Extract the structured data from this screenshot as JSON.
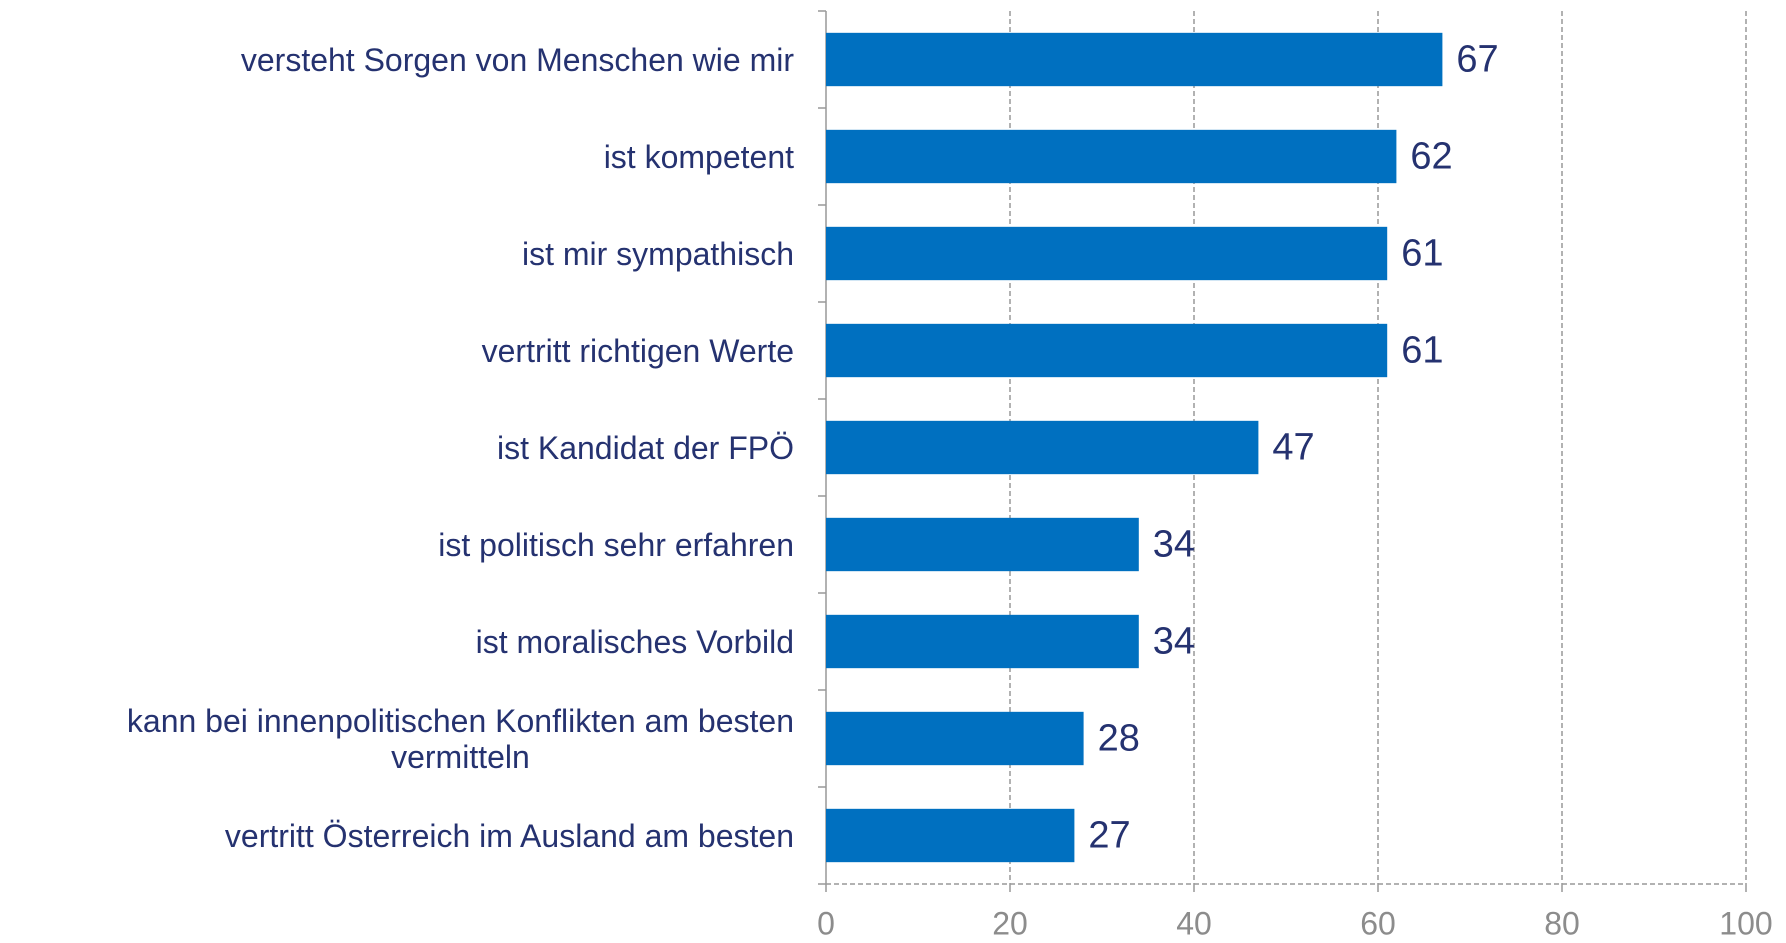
{
  "chart_data": {
    "type": "bar",
    "orientation": "horizontal",
    "categories": [
      "versteht Sorgen von Menschen wie mir",
      "ist kompetent",
      "ist mir sympathisch",
      "vertritt richtigen Werte",
      "ist Kandidat der FPÖ",
      "ist politisch sehr erfahren",
      "ist moralisches Vorbild",
      "kann bei innenpolitischen Konflikten am besten\nvermitteln",
      "vertritt Österreich im Ausland am besten"
    ],
    "values": [
      67,
      62,
      61,
      61,
      47,
      34,
      34,
      28,
      27
    ],
    "color": "#0070c0",
    "xlim": [
      0,
      100
    ],
    "xticks": [
      0,
      20,
      40,
      60,
      80,
      100
    ],
    "grid": true
  }
}
